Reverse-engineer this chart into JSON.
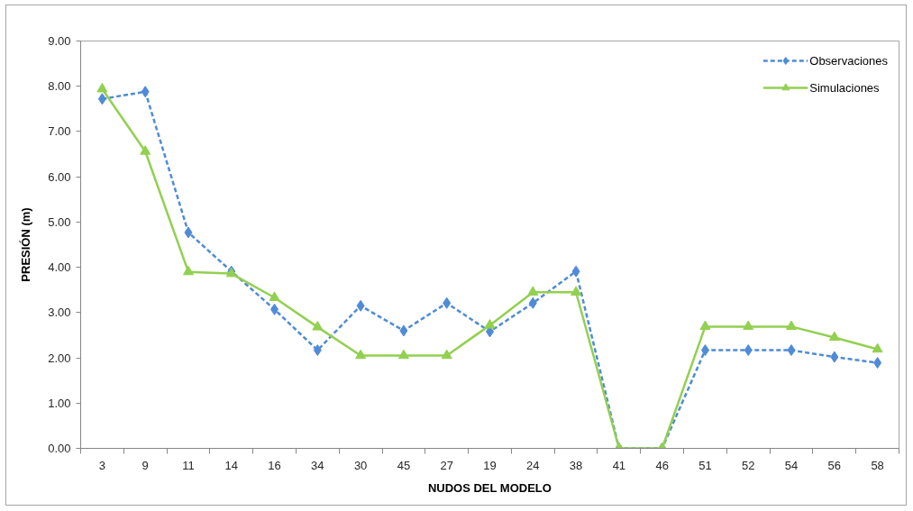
{
  "chart_data": {
    "type": "line",
    "xlabel": "NUDOS DEL MODELO",
    "ylabel": "PRESIÓN (m)",
    "categories": [
      "3",
      "9",
      "11",
      "14",
      "16",
      "34",
      "30",
      "45",
      "27",
      "19",
      "24",
      "38",
      "41",
      "46",
      "51",
      "52",
      "54",
      "56",
      "58"
    ],
    "ylim": [
      0,
      9
    ],
    "yticks": [
      {
        "value": 0,
        "label": "0.00"
      },
      {
        "value": 1,
        "label": "1.00"
      },
      {
        "value": 2,
        "label": "2.00"
      },
      {
        "value": 3,
        "label": "3.00"
      },
      {
        "value": 4,
        "label": "4.00"
      },
      {
        "value": 5,
        "label": "5.00"
      },
      {
        "value": 6,
        "label": "6.00"
      },
      {
        "value": 7,
        "label": "7.00"
      },
      {
        "value": 8,
        "label": "8.00"
      },
      {
        "value": 9,
        "label": "9.00"
      }
    ],
    "legend": "top right",
    "series": [
      {
        "name": "Observaciones",
        "color": "#4f8bd6",
        "marker": "diamond",
        "line_style": "dashed",
        "values": [
          7.72,
          7.88,
          4.77,
          3.91,
          3.07,
          2.17,
          3.15,
          2.6,
          3.21,
          2.58,
          3.21,
          3.91,
          0,
          0,
          2.17,
          2.17,
          2.17,
          2.02,
          1.89
        ]
      },
      {
        "name": "Simulaciones",
        "color": "#92d050",
        "marker": "triangle",
        "line_style": "solid",
        "values": [
          7.94,
          6.56,
          3.9,
          3.86,
          3.33,
          2.68,
          2.05,
          2.05,
          2.05,
          2.72,
          3.45,
          3.45,
          0,
          0,
          2.69,
          2.69,
          2.69,
          2.45,
          2.19
        ]
      }
    ]
  }
}
